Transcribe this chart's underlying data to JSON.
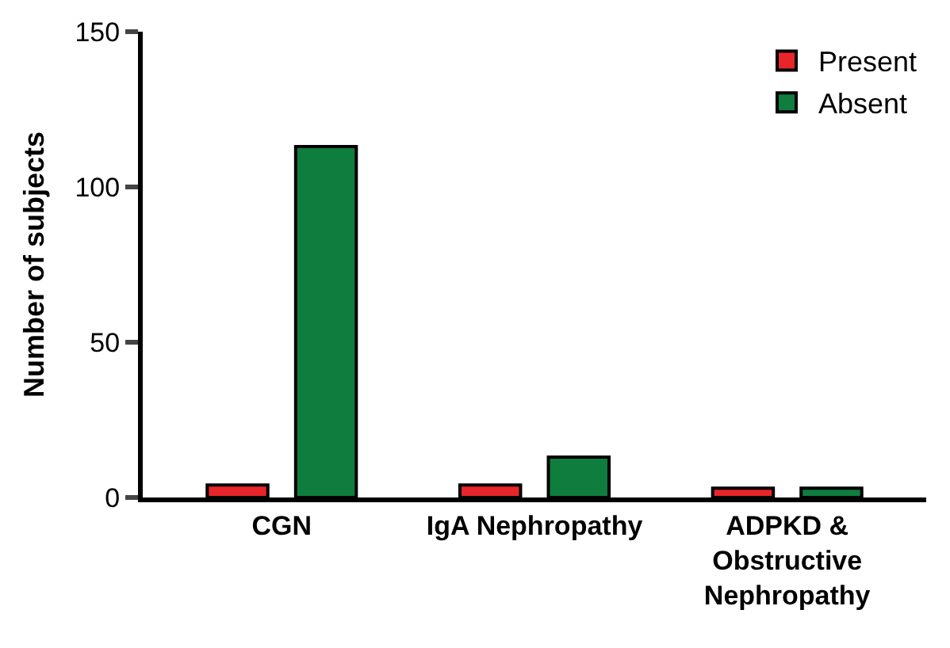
{
  "chart_data": {
    "type": "bar",
    "ylabel": "Number of subjects",
    "categories": [
      "CGN",
      "IgA Nephropathy",
      "ADPKD & Obstructive Nephropathy"
    ],
    "series": [
      {
        "name": "Present",
        "color": "#e8262a",
        "values": [
          4,
          4,
          3
        ]
      },
      {
        "name": "Absent",
        "color": "#0e7d3e",
        "values": [
          113,
          13,
          3
        ]
      }
    ],
    "ylim": [
      0,
      150
    ],
    "yticks": [
      0,
      50,
      100,
      150
    ],
    "legend": "top right"
  }
}
